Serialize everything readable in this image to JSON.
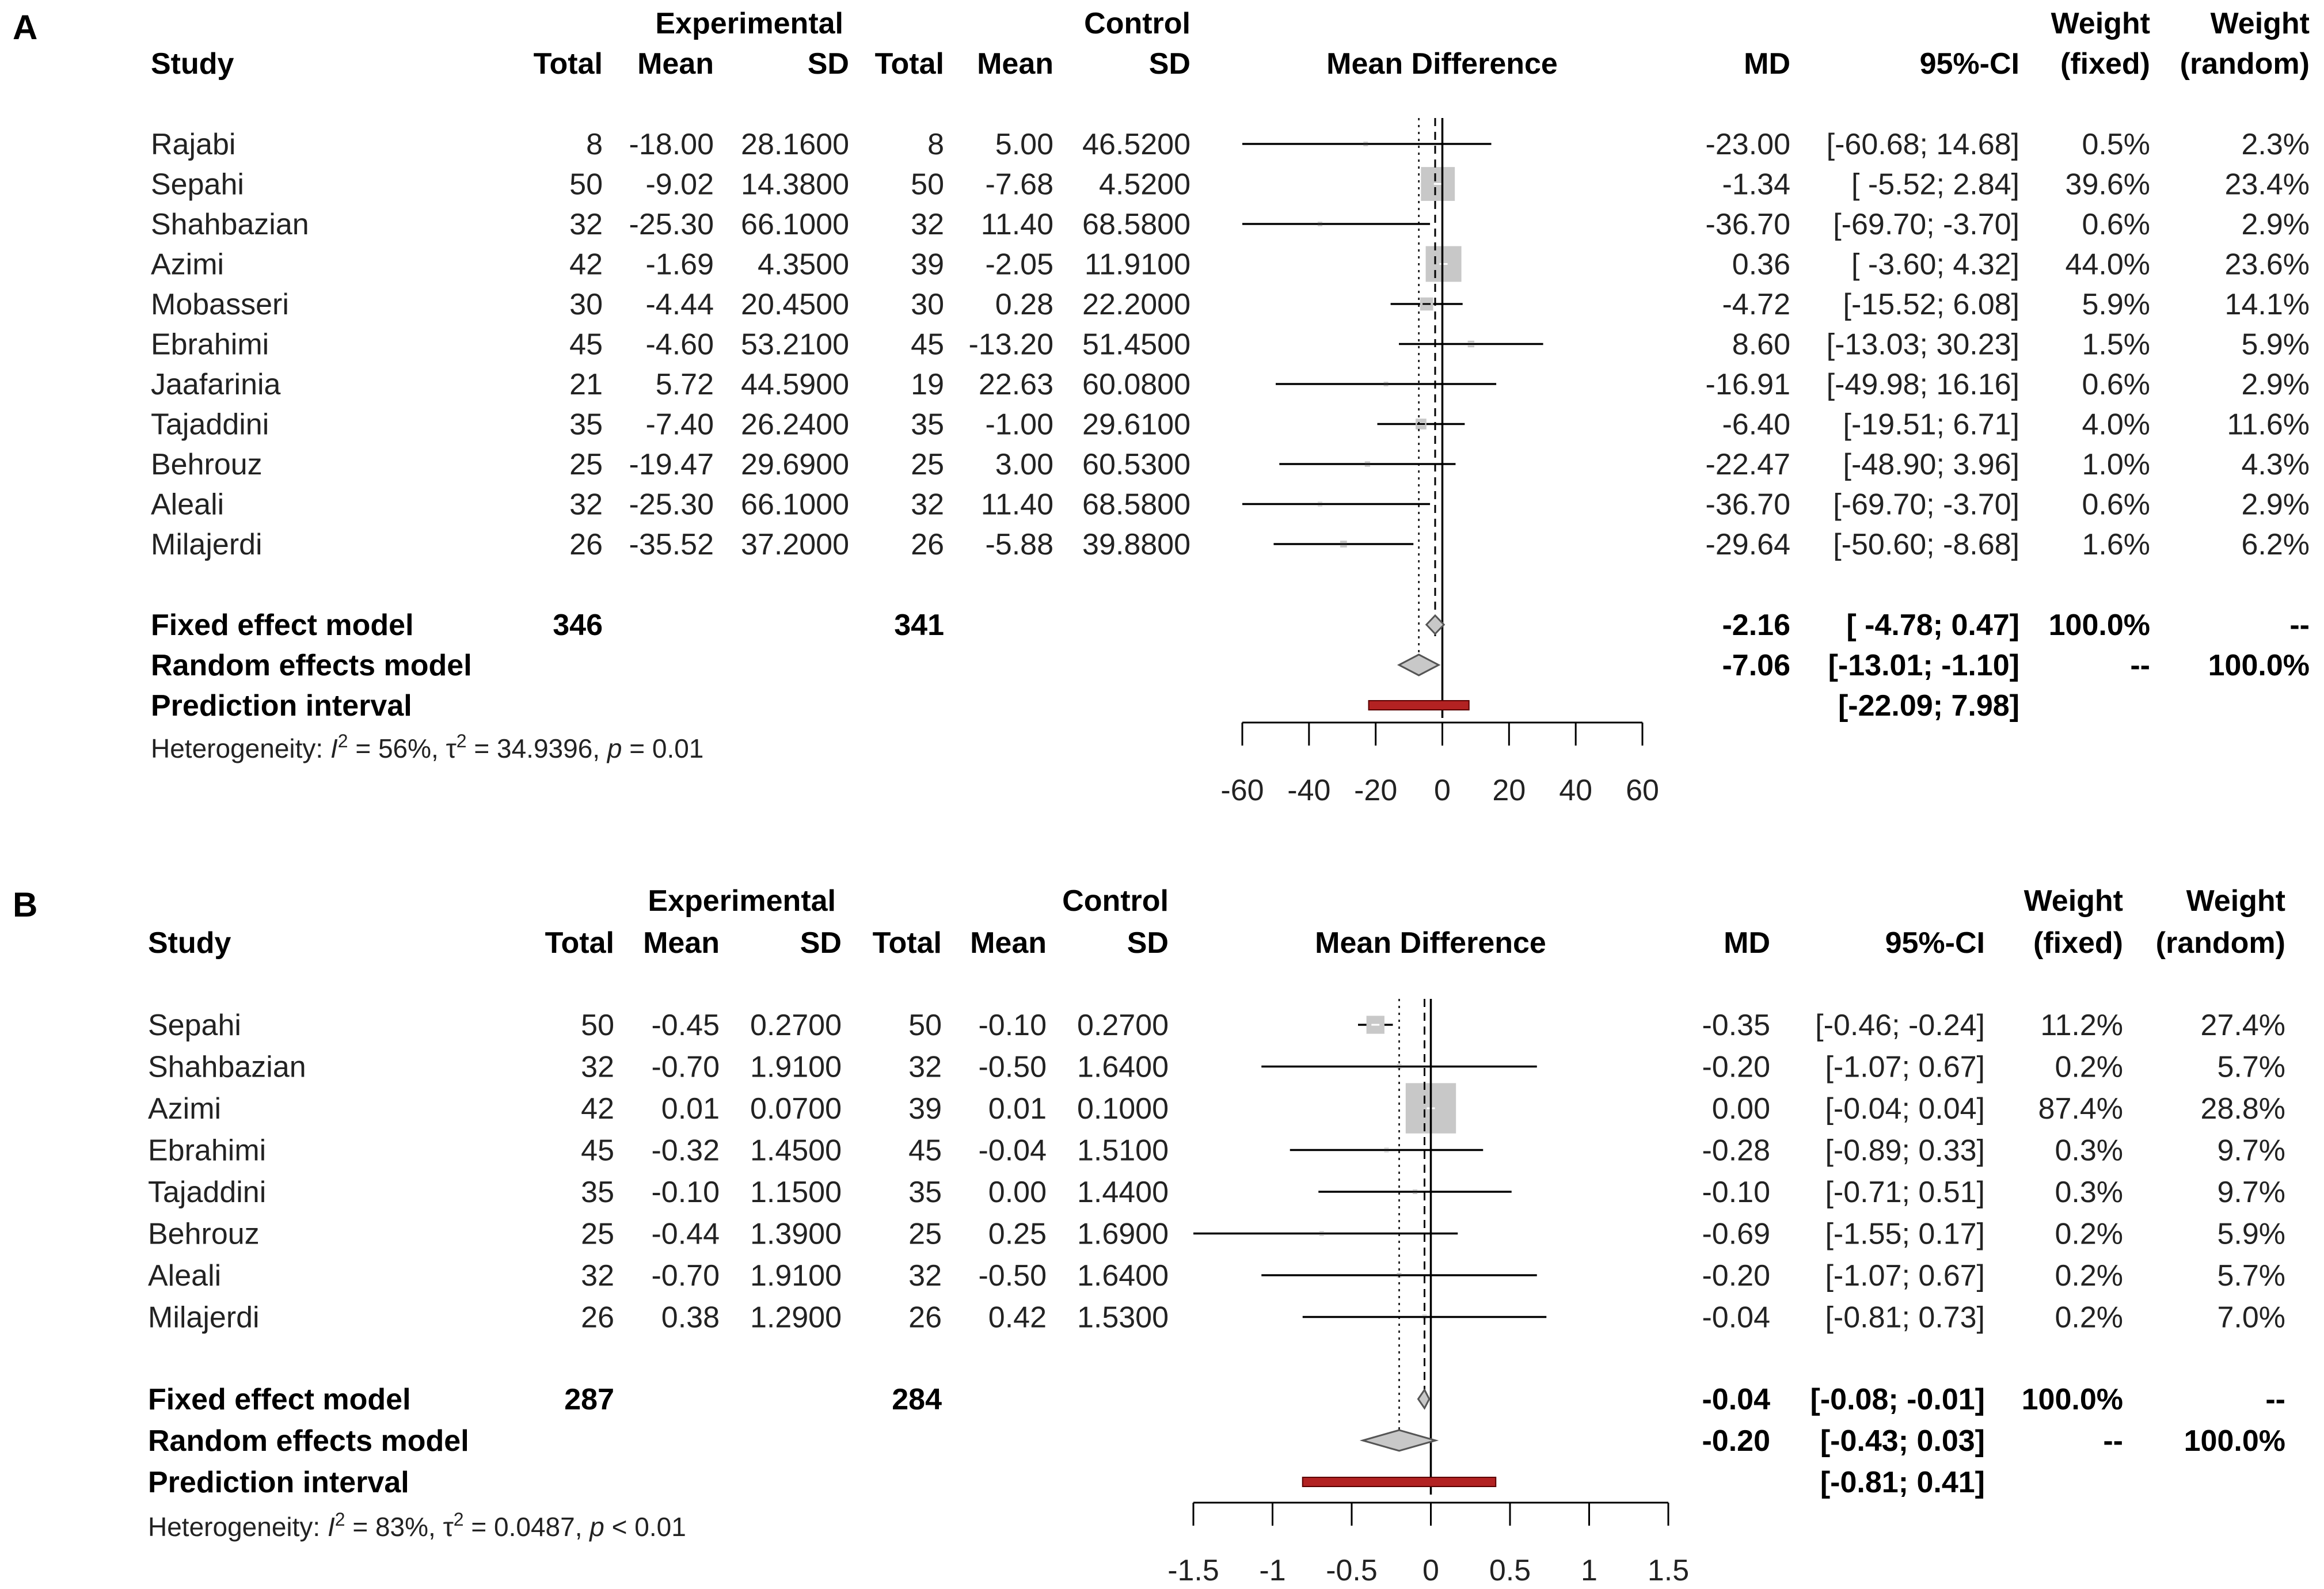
{
  "headers": {
    "experimental": "Experimental",
    "control": "Control",
    "study": "Study",
    "total": "Total",
    "mean": "Mean",
    "sd": "SD",
    "mean_difference": "Mean Difference",
    "md": "MD",
    "ci": "95%-CI",
    "weight": "Weight",
    "fixed": "(fixed)",
    "random": "(random)"
  },
  "chart_data": [
    {
      "type": "forest",
      "panel": "A",
      "xlim": [
        -60,
        60
      ],
      "ticks": [
        "-60",
        "-40",
        "-20",
        "0",
        "20",
        "40",
        "60"
      ],
      "tick_values": [
        -60,
        -40,
        -20,
        0,
        20,
        40,
        60
      ],
      "studies": [
        {
          "name": "Rajabi",
          "e_total": "8",
          "e_mean": "-18.00",
          "e_sd": "28.1600",
          "c_total": "8",
          "c_mean": "5.00",
          "c_sd": "46.5200",
          "md": "-23.00",
          "ci_text": "[-60.68; 14.68]",
          "w_fixed": "0.5%",
          "w_random": "2.3%",
          "md_val": -23.0,
          "lo": -60.68,
          "hi": 14.68,
          "wf": 0.5
        },
        {
          "name": "Sepahi",
          "e_total": "50",
          "e_mean": "-9.02",
          "e_sd": "14.3800",
          "c_total": "50",
          "c_mean": "-7.68",
          "c_sd": "4.5200",
          "md": "-1.34",
          "ci_text": "[ -5.52; 2.84]",
          "w_fixed": "39.6%",
          "w_random": "23.4%",
          "md_val": -1.34,
          "lo": -5.52,
          "hi": 2.84,
          "wf": 39.6
        },
        {
          "name": "Shahbazian",
          "e_total": "32",
          "e_mean": "-25.30",
          "e_sd": "66.1000",
          "c_total": "32",
          "c_mean": "11.40",
          "c_sd": "68.5800",
          "md": "-36.70",
          "ci_text": "[-69.70; -3.70]",
          "w_fixed": "0.6%",
          "w_random": "2.9%",
          "md_val": -36.7,
          "lo": -69.7,
          "hi": -3.7,
          "wf": 0.6
        },
        {
          "name": "Azimi",
          "e_total": "42",
          "e_mean": "-1.69",
          "e_sd": "4.3500",
          "c_total": "39",
          "c_mean": "-2.05",
          "c_sd": "11.9100",
          "md": "0.36",
          "ci_text": "[ -3.60; 4.32]",
          "w_fixed": "44.0%",
          "w_random": "23.6%",
          "md_val": 0.36,
          "lo": -3.6,
          "hi": 4.32,
          "wf": 44.0
        },
        {
          "name": "Mobasseri",
          "e_total": "30",
          "e_mean": "-4.44",
          "e_sd": "20.4500",
          "c_total": "30",
          "c_mean": "0.28",
          "c_sd": "22.2000",
          "md": "-4.72",
          "ci_text": "[-15.52; 6.08]",
          "w_fixed": "5.9%",
          "w_random": "14.1%",
          "md_val": -4.72,
          "lo": -15.52,
          "hi": 6.08,
          "wf": 5.9
        },
        {
          "name": "Ebrahimi",
          "e_total": "45",
          "e_mean": "-4.60",
          "e_sd": "53.2100",
          "c_total": "45",
          "c_mean": "-13.20",
          "c_sd": "51.4500",
          "md": "8.60",
          "ci_text": "[-13.03; 30.23]",
          "w_fixed": "1.5%",
          "w_random": "5.9%",
          "md_val": 8.6,
          "lo": -13.03,
          "hi": 30.23,
          "wf": 1.5
        },
        {
          "name": "Jaafarinia",
          "e_total": "21",
          "e_mean": "5.72",
          "e_sd": "44.5900",
          "c_total": "19",
          "c_mean": "22.63",
          "c_sd": "60.0800",
          "md": "-16.91",
          "ci_text": "[-49.98; 16.16]",
          "w_fixed": "0.6%",
          "w_random": "2.9%",
          "md_val": -16.91,
          "lo": -49.98,
          "hi": 16.16,
          "wf": 0.6
        },
        {
          "name": "Tajaddini",
          "e_total": "35",
          "e_mean": "-7.40",
          "e_sd": "26.2400",
          "c_total": "35",
          "c_mean": "-1.00",
          "c_sd": "29.6100",
          "md": "-6.40",
          "ci_text": "[-19.51; 6.71]",
          "w_fixed": "4.0%",
          "w_random": "11.6%",
          "md_val": -6.4,
          "lo": -19.51,
          "hi": 6.71,
          "wf": 4.0
        },
        {
          "name": "Behrouz",
          "e_total": "25",
          "e_mean": "-19.47",
          "e_sd": "29.6900",
          "c_total": "25",
          "c_mean": "3.00",
          "c_sd": "60.5300",
          "md": "-22.47",
          "ci_text": "[-48.90; 3.96]",
          "w_fixed": "1.0%",
          "w_random": "4.3%",
          "md_val": -22.47,
          "lo": -48.9,
          "hi": 3.96,
          "wf": 1.0
        },
        {
          "name": "Aleali",
          "e_total": "32",
          "e_mean": "-25.30",
          "e_sd": "66.1000",
          "c_total": "32",
          "c_mean": "11.40",
          "c_sd": "68.5800",
          "md": "-36.70",
          "ci_text": "[-69.70; -3.70]",
          "w_fixed": "0.6%",
          "w_random": "2.9%",
          "md_val": -36.7,
          "lo": -69.7,
          "hi": -3.7,
          "wf": 0.6
        },
        {
          "name": "Milajerdi",
          "e_total": "26",
          "e_mean": "-35.52",
          "e_sd": "37.2000",
          "c_total": "26",
          "c_mean": "-5.88",
          "c_sd": "39.8800",
          "md": "-29.64",
          "ci_text": "[-50.60; -8.68]",
          "w_fixed": "1.6%",
          "w_random": "6.2%",
          "md_val": -29.64,
          "lo": -50.6,
          "hi": -8.68,
          "wf": 1.6
        }
      ],
      "fixed": {
        "label": "Fixed effect model",
        "e_total": "346",
        "c_total": "341",
        "md": "-2.16",
        "ci_text": "[ -4.78; 0.47]",
        "w_fixed": "100.0%",
        "w_random": "--",
        "md_val": -2.16,
        "lo": -4.78,
        "hi": 0.47
      },
      "random": {
        "label": "Random effects model",
        "md": "-7.06",
        "ci_text": "[-13.01; -1.10]",
        "w_fixed": "--",
        "w_random": "100.0%",
        "md_val": -7.06,
        "lo": -13.01,
        "hi": -1.1
      },
      "prediction": {
        "label": "Prediction interval",
        "ci_text": "[-22.09; 7.98]",
        "lo": -22.09,
        "hi": 7.98
      },
      "heterogeneity": {
        "prefix": "Heterogeneity: ",
        "i2_symbol": "I",
        "i2_sup": "2",
        "i2_value": " = 56%, ",
        "tau_symbol": "τ",
        "tau_sup": "2",
        "tau_value": " = 34.9396, ",
        "p_symbol": "p",
        "p_value": " = 0.01"
      }
    },
    {
      "type": "forest",
      "panel": "B",
      "xlim": [
        -1.5,
        1.5
      ],
      "ticks": [
        "-1.5",
        "-1",
        "-0.5",
        "0",
        "0.5",
        "1",
        "1.5"
      ],
      "tick_values": [
        -1.5,
        -1,
        -0.5,
        0,
        0.5,
        1,
        1.5
      ],
      "studies": [
        {
          "name": "Sepahi",
          "e_total": "50",
          "e_mean": "-0.45",
          "e_sd": "0.2700",
          "c_total": "50",
          "c_mean": "-0.10",
          "c_sd": "0.2700",
          "md": "-0.35",
          "ci_text": "[-0.46; -0.24]",
          "w_fixed": "11.2%",
          "w_random": "27.4%",
          "md_val": -0.35,
          "lo": -0.46,
          "hi": -0.24,
          "wf": 11.2
        },
        {
          "name": "Shahbazian",
          "e_total": "32",
          "e_mean": "-0.70",
          "e_sd": "1.9100",
          "c_total": "32",
          "c_mean": "-0.50",
          "c_sd": "1.6400",
          "md": "-0.20",
          "ci_text": "[-1.07; 0.67]",
          "w_fixed": "0.2%",
          "w_random": "5.7%",
          "md_val": -0.2,
          "lo": -1.07,
          "hi": 0.67,
          "wf": 0.2
        },
        {
          "name": "Azimi",
          "e_total": "42",
          "e_mean": "0.01",
          "e_sd": "0.0700",
          "c_total": "39",
          "c_mean": "0.01",
          "c_sd": "0.1000",
          "md": "0.00",
          "ci_text": "[-0.04; 0.04]",
          "w_fixed": "87.4%",
          "w_random": "28.8%",
          "md_val": 0.0,
          "lo": -0.04,
          "hi": 0.04,
          "wf": 87.4
        },
        {
          "name": "Ebrahimi",
          "e_total": "45",
          "e_mean": "-0.32",
          "e_sd": "1.4500",
          "c_total": "45",
          "c_mean": "-0.04",
          "c_sd": "1.5100",
          "md": "-0.28",
          "ci_text": "[-0.89; 0.33]",
          "w_fixed": "0.3%",
          "w_random": "9.7%",
          "md_val": -0.28,
          "lo": -0.89,
          "hi": 0.33,
          "wf": 0.3
        },
        {
          "name": "Tajaddini",
          "e_total": "35",
          "e_mean": "-0.10",
          "e_sd": "1.1500",
          "c_total": "35",
          "c_mean": "0.00",
          "c_sd": "1.4400",
          "md": "-0.10",
          "ci_text": "[-0.71; 0.51]",
          "w_fixed": "0.3%",
          "w_random": "9.7%",
          "md_val": -0.1,
          "lo": -0.71,
          "hi": 0.51,
          "wf": 0.3
        },
        {
          "name": "Behrouz",
          "e_total": "25",
          "e_mean": "-0.44",
          "e_sd": "1.3900",
          "c_total": "25",
          "c_mean": "0.25",
          "c_sd": "1.6900",
          "md": "-0.69",
          "ci_text": "[-1.55; 0.17]",
          "w_fixed": "0.2%",
          "w_random": "5.9%",
          "md_val": -0.69,
          "lo": -1.55,
          "hi": 0.17,
          "wf": 0.2
        },
        {
          "name": "Aleali",
          "e_total": "32",
          "e_mean": "-0.70",
          "e_sd": "1.9100",
          "c_total": "32",
          "c_mean": "-0.50",
          "c_sd": "1.6400",
          "md": "-0.20",
          "ci_text": "[-1.07; 0.67]",
          "w_fixed": "0.2%",
          "w_random": "5.7%",
          "md_val": -0.2,
          "lo": -1.07,
          "hi": 0.67,
          "wf": 0.2
        },
        {
          "name": "Milajerdi",
          "e_total": "26",
          "e_mean": "0.38",
          "e_sd": "1.2900",
          "c_total": "26",
          "c_mean": "0.42",
          "c_sd": "1.5300",
          "md": "-0.04",
          "ci_text": "[-0.81; 0.73]",
          "w_fixed": "0.2%",
          "w_random": "7.0%",
          "md_val": -0.04,
          "lo": -0.81,
          "hi": 0.73,
          "wf": 0.2
        }
      ],
      "fixed": {
        "label": "Fixed effect model",
        "e_total": "287",
        "c_total": "284",
        "md": "-0.04",
        "ci_text": "[-0.08; -0.01]",
        "w_fixed": "100.0%",
        "w_random": "--",
        "md_val": -0.04,
        "lo": -0.08,
        "hi": -0.01
      },
      "random": {
        "label": "Random effects model",
        "md": "-0.20",
        "ci_text": "[-0.43; 0.03]",
        "w_fixed": "--",
        "w_random": "100.0%",
        "md_val": -0.2,
        "lo": -0.43,
        "hi": 0.03
      },
      "prediction": {
        "label": "Prediction interval",
        "ci_text": "[-0.81; 0.41]",
        "lo": -0.81,
        "hi": 0.41
      },
      "heterogeneity": {
        "prefix": "Heterogeneity: ",
        "i2_symbol": "I",
        "i2_sup": "2",
        "i2_value": " = 83%, ",
        "tau_symbol": "τ",
        "tau_sup": "2",
        "tau_value": " = 0.0487, ",
        "p_symbol": "p",
        "p_value": " < 0.01"
      }
    }
  ]
}
